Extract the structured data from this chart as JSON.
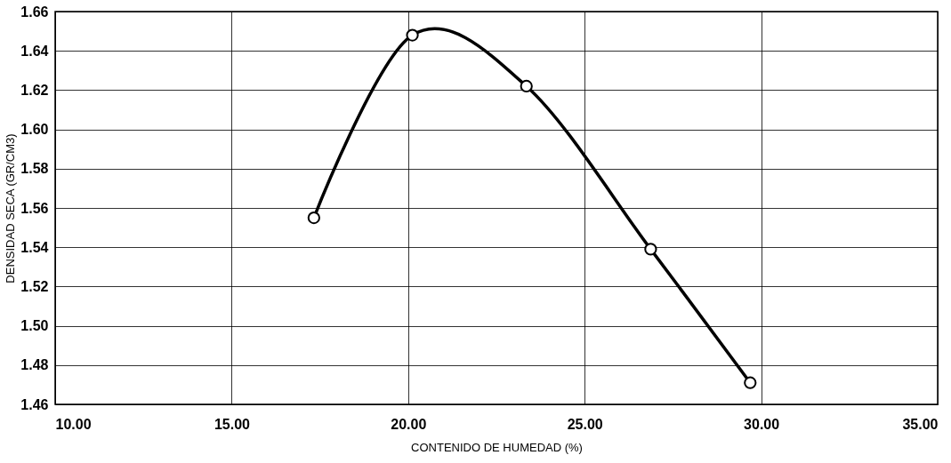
{
  "chart_data": {
    "type": "line",
    "xlabel": "CONTENIDO DE HUMEDAD (%)",
    "ylabel": "DENSIDAD SECA (GR/CM3)",
    "x": [
      17.33,
      20.12,
      23.35,
      26.87,
      29.69
    ],
    "series": [
      {
        "color": "#000000",
        "values": [
          1.555,
          1.648,
          1.622,
          1.539,
          1.471
        ]
      }
    ],
    "xlim": [
      10,
      35
    ],
    "xticks": [
      {
        "value": 10,
        "label": "10.00"
      },
      {
        "value": 15,
        "label": "15.00"
      },
      {
        "value": 20,
        "label": "20.00"
      },
      {
        "value": 25,
        "label": "25.00"
      },
      {
        "value": 30,
        "label": "30.00"
      },
      {
        "value": 35,
        "label": "35.00"
      }
    ],
    "ylim": [
      1.46,
      1.66
    ],
    "yticks": [
      {
        "value": 1.46,
        "label": "1.46"
      },
      {
        "value": 1.48,
        "label": "1.48"
      },
      {
        "value": 1.5,
        "label": "1.50"
      },
      {
        "value": 1.52,
        "label": "1.52"
      },
      {
        "value": 1.54,
        "label": "1.54"
      },
      {
        "value": 1.56,
        "label": "1.56"
      },
      {
        "value": 1.58,
        "label": "1.58"
      },
      {
        "value": 1.6,
        "label": "1.60"
      },
      {
        "value": 1.62,
        "label": "1.62"
      },
      {
        "value": 1.64,
        "label": "1.64"
      },
      {
        "value": 1.66,
        "label": "1.66"
      }
    ],
    "grid": true,
    "marker": "circle",
    "line_style": "solid"
  }
}
